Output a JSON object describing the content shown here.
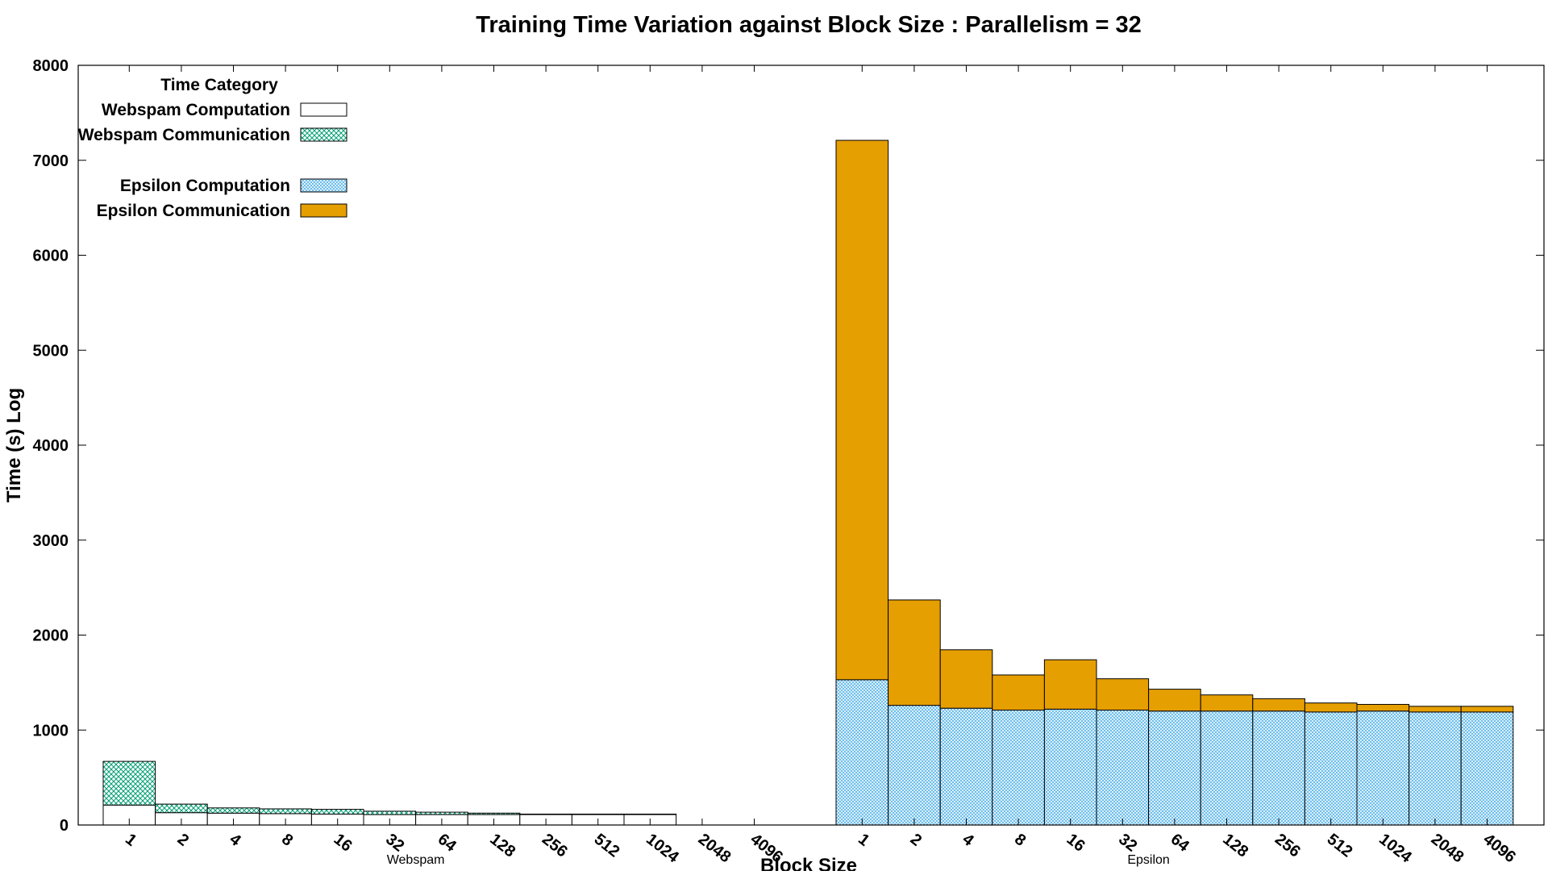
{
  "chart_data": {
    "type": "bar",
    "stacked": true,
    "title": "Training Time Variation against Block Size : Parallelism = 32",
    "xlabel": "Block Size",
    "ylabel": "Time (s) Log",
    "ylim": [
      0,
      8000
    ],
    "yticks": [
      0,
      1000,
      2000,
      3000,
      4000,
      5000,
      6000,
      7000,
      8000
    ],
    "grid": false,
    "legend": {
      "title": "Time Category",
      "placement": "top-left"
    },
    "categories": [
      "1",
      "2",
      "4",
      "8",
      "16",
      "32",
      "64",
      "128",
      "256",
      "512",
      "1024",
      "2048",
      "4096"
    ],
    "groups": [
      {
        "name": "Webspam",
        "series": [
          {
            "name": "Webspam Computation",
            "fill": "#ffffff",
            "pattern": "none",
            "values": [
              210,
              130,
              125,
              120,
              115,
              110,
              110,
              110,
              110,
              110,
              110,
              0,
              0
            ]
          },
          {
            "name": "Webspam Communication",
            "fill": "#009e73",
            "pattern": "crosshatch",
            "values": [
              460,
              90,
              55,
              50,
              50,
              35,
              25,
              15,
              5,
              5,
              5,
              0,
              0
            ]
          }
        ]
      },
      {
        "name": "Epsilon",
        "series": [
          {
            "name": "Epsilon Computation",
            "fill": "#56b4e9",
            "pattern": "fine-hatch",
            "values": [
              1530,
              1260,
              1230,
              1210,
              1220,
              1210,
              1200,
              1200,
              1200,
              1190,
              1200,
              1190,
              1190
            ]
          },
          {
            "name": "Epsilon Communication",
            "fill": "#e69f00",
            "pattern": "none",
            "values": [
              5680,
              1110,
              615,
              370,
              520,
              330,
              230,
              170,
              130,
              95,
              70,
              60,
              60
            ]
          }
        ]
      }
    ]
  }
}
